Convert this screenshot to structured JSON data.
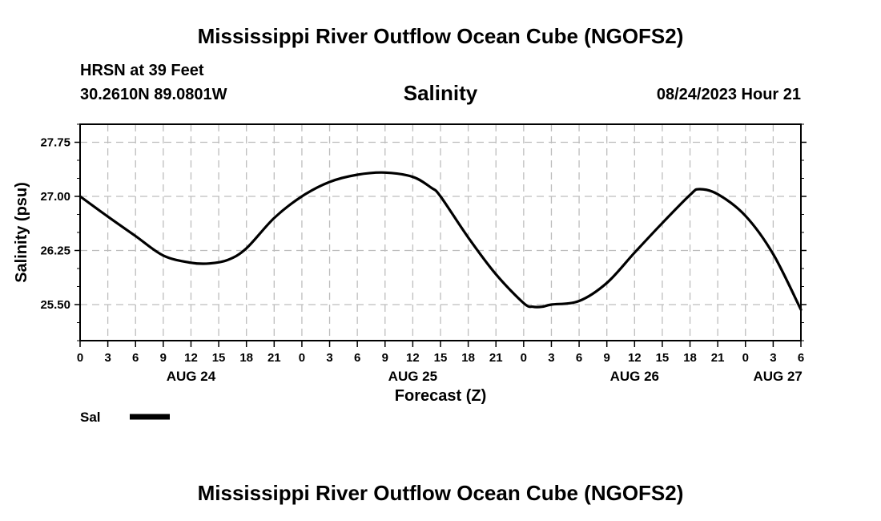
{
  "page_title": "Mississippi River Outflow Ocean Cube (NGOFS2)",
  "footer_title": "Mississippi River Outflow Ocean Cube (NGOFS2)",
  "station": {
    "name_line": "HRSN at 39 Feet",
    "coords_line": "30.2610N  89.0801W"
  },
  "timestamp": "08/24/2023 Hour 21",
  "chart_data": {
    "type": "line",
    "title": "Salinity",
    "xlabel": "Forecast (Z)",
    "ylabel": "Salinity (psu)",
    "x_unit": "hours from AUG 24 00Z",
    "xlim": [
      0,
      78
    ],
    "ylim": [
      25.0,
      28.0
    ],
    "y_ticks": [
      {
        "value": 25.5,
        "label": "25.50"
      },
      {
        "value": 26.25,
        "label": "26.25"
      },
      {
        "value": 27.0,
        "label": "27.00"
      },
      {
        "value": 27.75,
        "label": "27.75"
      }
    ],
    "x_ticks": [
      {
        "value": 0,
        "label": "0"
      },
      {
        "value": 3,
        "label": "3"
      },
      {
        "value": 6,
        "label": "6"
      },
      {
        "value": 9,
        "label": "9"
      },
      {
        "value": 12,
        "label": "12"
      },
      {
        "value": 15,
        "label": "15"
      },
      {
        "value": 18,
        "label": "18"
      },
      {
        "value": 21,
        "label": "21"
      },
      {
        "value": 24,
        "label": "0"
      },
      {
        "value": 27,
        "label": "3"
      },
      {
        "value": 30,
        "label": "6"
      },
      {
        "value": 33,
        "label": "9"
      },
      {
        "value": 36,
        "label": "12"
      },
      {
        "value": 39,
        "label": "15"
      },
      {
        "value": 42,
        "label": "18"
      },
      {
        "value": 45,
        "label": "21"
      },
      {
        "value": 48,
        "label": "0"
      },
      {
        "value": 51,
        "label": "3"
      },
      {
        "value": 54,
        "label": "6"
      },
      {
        "value": 57,
        "label": "9"
      },
      {
        "value": 60,
        "label": "12"
      },
      {
        "value": 63,
        "label": "15"
      },
      {
        "value": 66,
        "label": "18"
      },
      {
        "value": 69,
        "label": "21"
      },
      {
        "value": 72,
        "label": "0"
      },
      {
        "value": 75,
        "label": "3"
      },
      {
        "value": 78,
        "label": "6"
      }
    ],
    "date_labels": [
      {
        "value": 12,
        "label": "AUG 24"
      },
      {
        "value": 36,
        "label": "AUG 25"
      },
      {
        "value": 60,
        "label": "AUG 26"
      },
      {
        "value": 75.5,
        "label": "AUG 27"
      }
    ],
    "grid": true,
    "series": [
      {
        "name": "Sal",
        "color": "#000000",
        "x": [
          0,
          3,
          6,
          9,
          12,
          14,
          16,
          18,
          21,
          24,
          27,
          30,
          33,
          36,
          38,
          39,
          42,
          45,
          48,
          49,
          50,
          51,
          54,
          57,
          60,
          63,
          66,
          67,
          69,
          72,
          75,
          78
        ],
        "y": [
          27.0,
          26.72,
          26.45,
          26.18,
          26.08,
          26.07,
          26.12,
          26.28,
          26.7,
          27.0,
          27.2,
          27.3,
          27.33,
          27.27,
          27.12,
          27.0,
          26.43,
          25.92,
          25.52,
          25.47,
          25.47,
          25.5,
          25.55,
          25.8,
          26.22,
          26.63,
          27.02,
          27.1,
          27.03,
          26.73,
          26.2,
          25.43
        ]
      }
    ]
  },
  "legend": {
    "label": "Sal",
    "color": "#000000"
  }
}
